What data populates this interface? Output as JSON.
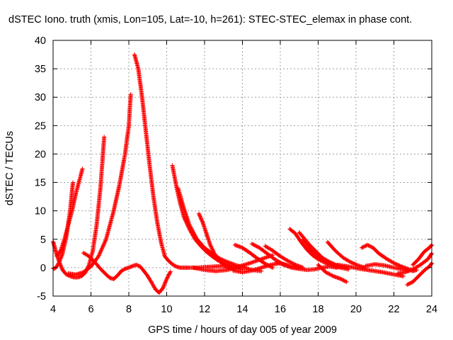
{
  "chart_data": {
    "type": "scatter",
    "title": "dSTEC Iono. truth (xmis, Lon=105, Lat=-10, h=261): STEC-STEC_elemax in phase cont.",
    "xlabel": "GPS time / hours of day 005 of year 2009",
    "ylabel": "dSTEC  / TECUs",
    "xlim": [
      4,
      24
    ],
    "ylim": [
      -5,
      40
    ],
    "xticks": [
      4,
      6,
      8,
      10,
      12,
      14,
      16,
      18,
      20,
      22,
      24
    ],
    "yticks": [
      -5,
      0,
      5,
      10,
      15,
      20,
      25,
      30,
      35,
      40
    ],
    "grid": true,
    "marker": "plus",
    "colors": {
      "series": "#ff0000",
      "grid": "#a0a0a0",
      "frame": "#000000"
    },
    "series": [
      {
        "x": [
          3.95,
          4.05,
          4.15,
          4.3,
          4.5,
          4.7,
          4.9,
          5.0,
          5.05
        ],
        "y": [
          0.0,
          -0.2,
          0.0,
          0.8,
          2.5,
          5.5,
          10,
          13.5,
          15.0
        ]
      },
      {
        "x": [
          4.2,
          4.4,
          4.6,
          4.8,
          5.0,
          5.2,
          5.4,
          5.55
        ],
        "y": [
          2.0,
          3.0,
          5.0,
          7.5,
          10.0,
          13.0,
          15.5,
          17.4
        ]
      },
      {
        "x": [
          4.0,
          4.1,
          4.2,
          4.35,
          4.5,
          4.7,
          4.9,
          5.1,
          5.3,
          5.5,
          5.7,
          5.9,
          6.1,
          6.3,
          6.5,
          6.7
        ],
        "y": [
          4.6,
          3.4,
          2.2,
          0.8,
          -0.4,
          -1.2,
          -1.5,
          -1.7,
          -1.7,
          -1.5,
          -0.9,
          0.5,
          3.0,
          7.5,
          14.0,
          23.0
        ]
      },
      {
        "x": [
          5.6,
          5.9,
          6.2,
          6.5,
          6.8,
          7.0,
          7.2,
          7.4,
          7.6,
          7.8,
          8.0,
          8.2,
          8.4,
          8.6,
          8.8,
          9.0,
          9.2,
          9.4,
          9.6,
          9.8,
          10.0,
          10.2
        ],
        "y": [
          2.6,
          2.0,
          1.0,
          -0.2,
          -1.2,
          -1.8,
          -2.0,
          -1.4,
          -0.6,
          -0.2,
          0.0,
          0.3,
          0.5,
          0.2,
          -0.6,
          -1.5,
          -2.6,
          -3.8,
          -4.4,
          -3.6,
          -2.0,
          -0.7
        ]
      },
      {
        "x": [
          4.8,
          5.2,
          5.6,
          6.0,
          6.4,
          6.8,
          7.2,
          7.5,
          7.8,
          8.0,
          8.1
        ],
        "y": [
          -1.0,
          -1.2,
          -0.8,
          0.2,
          2.0,
          5.0,
          10.0,
          14.5,
          20.0,
          25.0,
          30.5
        ]
      },
      {
        "x": [
          8.3,
          8.5,
          8.7,
          8.9,
          9.1,
          9.3,
          9.5,
          9.7,
          9.9,
          10.1,
          10.3,
          10.5,
          10.7,
          10.9,
          11.2,
          11.6,
          12.0,
          12.5,
          13.0,
          13.5,
          14.0
        ],
        "y": [
          37.5,
          35.0,
          30.0,
          24.0,
          18.0,
          12.5,
          8.0,
          4.5,
          2.0,
          1.2,
          0.6,
          0.2,
          0.0,
          0.0,
          0.0,
          0.0,
          0.1,
          0.2,
          0.3,
          0.0,
          -0.3
        ]
      },
      {
        "x": [
          10.3,
          10.5,
          10.7,
          10.9,
          11.2,
          11.5,
          11.8,
          12.1,
          12.4,
          12.7,
          13.0,
          13.3,
          13.6
        ],
        "y": [
          18.0,
          14.5,
          11.5,
          9.0,
          6.8,
          5.0,
          3.8,
          2.8,
          2.0,
          1.3,
          0.8,
          0.4,
          0.0
        ]
      },
      {
        "x": [
          10.6,
          10.9,
          11.2,
          11.6,
          12.0,
          12.4,
          12.8,
          13.2,
          13.6,
          14.0,
          14.5,
          15.0
        ],
        "y": [
          14.0,
          10.5,
          7.5,
          5.0,
          3.5,
          2.5,
          1.6,
          1.0,
          0.5,
          0.1,
          -0.4,
          -0.6
        ]
      },
      {
        "x": [
          11.7,
          11.9,
          12.1,
          12.3,
          12.5,
          12.7,
          12.9,
          13.1,
          13.3,
          13.6
        ],
        "y": [
          9.5,
          8.0,
          6.0,
          4.0,
          2.6,
          1.5,
          0.8,
          0.3,
          0.0,
          -0.2
        ]
      },
      {
        "x": [
          11.4,
          12.0,
          12.6,
          13.2,
          13.8,
          14.4,
          15.0,
          15.6
        ],
        "y": [
          0.0,
          -0.4,
          -0.6,
          -0.4,
          0.2,
          0.8,
          1.5,
          2.2
        ]
      },
      {
        "x": [
          13.6,
          14.0,
          14.4,
          14.8,
          15.2,
          15.6
        ],
        "y": [
          4.0,
          3.5,
          2.6,
          1.6,
          0.7,
          0.0
        ]
      },
      {
        "x": [
          14.5,
          14.9,
          15.3,
          15.7,
          16.1,
          16.5
        ],
        "y": [
          4.2,
          3.5,
          2.5,
          1.5,
          0.7,
          0.2
        ]
      },
      {
        "x": [
          15.2,
          15.6,
          16.0,
          16.4,
          16.8,
          17.2
        ],
        "y": [
          3.8,
          3.0,
          2.0,
          1.2,
          0.5,
          0.0
        ]
      },
      {
        "x": [
          13.5,
          14.0,
          14.5,
          15.0,
          15.5,
          16.0,
          16.5,
          17.0
        ],
        "y": [
          -0.5,
          -0.8,
          -0.5,
          0.0,
          0.5,
          0.8,
          0.3,
          -0.2
        ]
      },
      {
        "x": [
          15.8,
          16.2,
          16.6,
          17.0,
          17.4,
          17.8,
          18.2,
          18.6,
          19.0
        ],
        "y": [
          1.0,
          0.5,
          0.0,
          -0.2,
          -0.4,
          -0.3,
          0.0,
          0.2,
          0.0
        ]
      },
      {
        "x": [
          16.5,
          16.8,
          17.1,
          17.4,
          17.7,
          18.0,
          18.4,
          18.8,
          19.2
        ],
        "y": [
          6.8,
          6.0,
          4.5,
          3.2,
          2.2,
          1.5,
          0.8,
          0.3,
          0.0
        ]
      },
      {
        "x": [
          17.0,
          17.3,
          17.6,
          17.9,
          18.2,
          18.6,
          19.0,
          19.5
        ],
        "y": [
          6.2,
          5.0,
          3.8,
          2.8,
          1.8,
          1.0,
          0.4,
          0.0
        ]
      },
      {
        "x": [
          17.2,
          17.6,
          18.0,
          18.4,
          18.8,
          19.2,
          19.6
        ],
        "y": [
          5.0,
          3.2,
          2.0,
          1.2,
          0.5,
          0.0,
          -0.3
        ]
      },
      {
        "x": [
          18.0,
          18.4,
          18.8,
          19.2,
          19.5
        ],
        "y": [
          0.5,
          -0.8,
          -1.5,
          -2.0,
          -2.5
        ]
      },
      {
        "x": [
          18.5,
          18.9,
          19.3,
          19.7,
          20.1,
          20.5
        ],
        "y": [
          4.5,
          3.0,
          1.8,
          1.0,
          0.4,
          0.0
        ]
      },
      {
        "x": [
          19.0,
          19.6,
          20.2,
          20.8,
          21.4,
          22.0,
          22.5
        ],
        "y": [
          0.5,
          0.2,
          -0.2,
          -0.5,
          -0.8,
          -1.2,
          -1.5
        ]
      },
      {
        "x": [
          20.3,
          20.6,
          20.9,
          21.2,
          21.6,
          22.0,
          22.4,
          22.8,
          23.0,
          23.2
        ],
        "y": [
          3.5,
          4.0,
          3.5,
          2.5,
          1.6,
          0.8,
          0.2,
          -0.3,
          -0.6,
          -0.4
        ]
      },
      {
        "x": [
          20.5,
          21.0,
          21.5,
          22.0,
          22.5,
          22.8
        ],
        "y": [
          0.3,
          0.6,
          0.4,
          0.0,
          -0.3,
          -0.5
        ]
      },
      {
        "x": [
          22.7,
          23.0,
          23.3,
          23.6,
          23.9,
          24.0
        ],
        "y": [
          -3.0,
          -2.5,
          -1.5,
          -0.5,
          0.3,
          0.8
        ]
      },
      {
        "x": [
          22.2,
          22.6,
          23.0,
          23.4,
          23.8,
          24.0
        ],
        "y": [
          -1.0,
          -0.8,
          -0.3,
          0.5,
          1.5,
          2.5
        ]
      },
      {
        "x": [
          23.0,
          23.3,
          23.6,
          23.9,
          24.0
        ],
        "y": [
          0.5,
          1.5,
          2.8,
          3.6,
          4.0
        ]
      }
    ]
  }
}
